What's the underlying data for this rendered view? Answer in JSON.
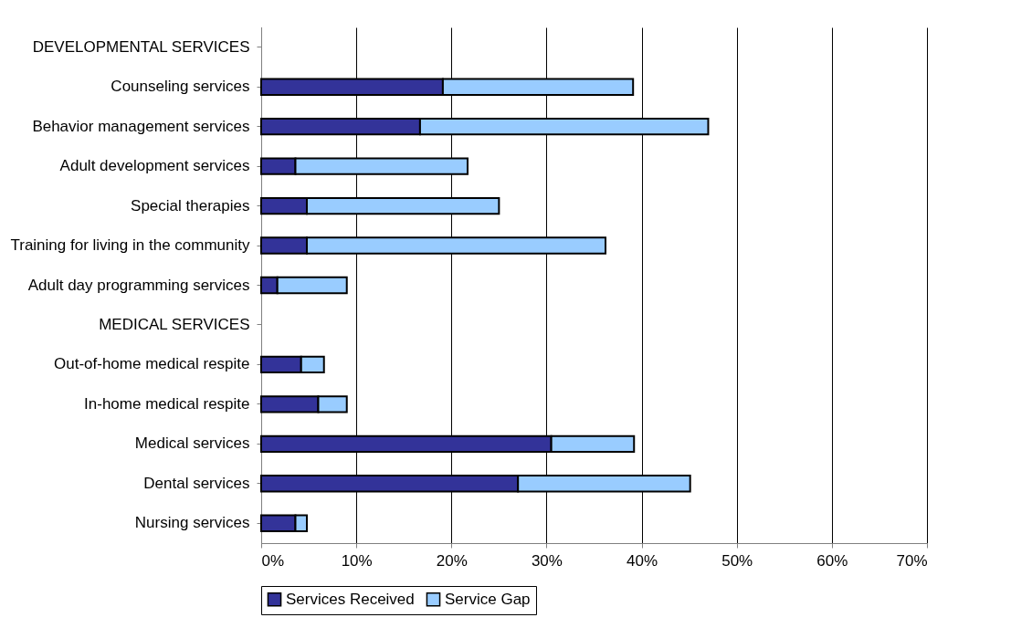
{
  "chart_data": {
    "type": "bar",
    "orientation": "horizontal",
    "stacked": true,
    "categories": [
      "DEVELOPMENTAL SERVICES",
      "Counseling services",
      "Behavior management services",
      "Adult development services",
      "Special therapies",
      "Training for living in the community",
      "Adult day programming services",
      "MEDICAL SERVICES",
      "Out-of-home medical respite",
      "In-home medical respite",
      "Medical services",
      "Dental services",
      "Nursing services"
    ],
    "series": [
      {
        "name": "Services Received",
        "color": "#333399",
        "values": [
          null,
          19.1,
          16.7,
          3.6,
          4.8,
          4.8,
          1.7,
          null,
          4.2,
          6.0,
          30.5,
          27.0,
          3.6
        ]
      },
      {
        "name": "Service Gap",
        "color": "#99ccff",
        "values": [
          null,
          20.0,
          30.3,
          18.1,
          20.2,
          31.4,
          7.3,
          null,
          2.4,
          3.0,
          8.7,
          18.1,
          1.2
        ]
      }
    ],
    "xlim": [
      0,
      70
    ],
    "xticks": [
      {
        "value": 0,
        "label": "0%"
      },
      {
        "value": 10,
        "label": "10%"
      },
      {
        "value": 20,
        "label": "20%"
      },
      {
        "value": 30,
        "label": "30%"
      },
      {
        "value": 40,
        "label": "40%"
      },
      {
        "value": 50,
        "label": "50%"
      },
      {
        "value": 60,
        "label": "60%"
      },
      {
        "value": 70,
        "label": "70%"
      }
    ],
    "grid": "x",
    "legend": "bottom"
  }
}
